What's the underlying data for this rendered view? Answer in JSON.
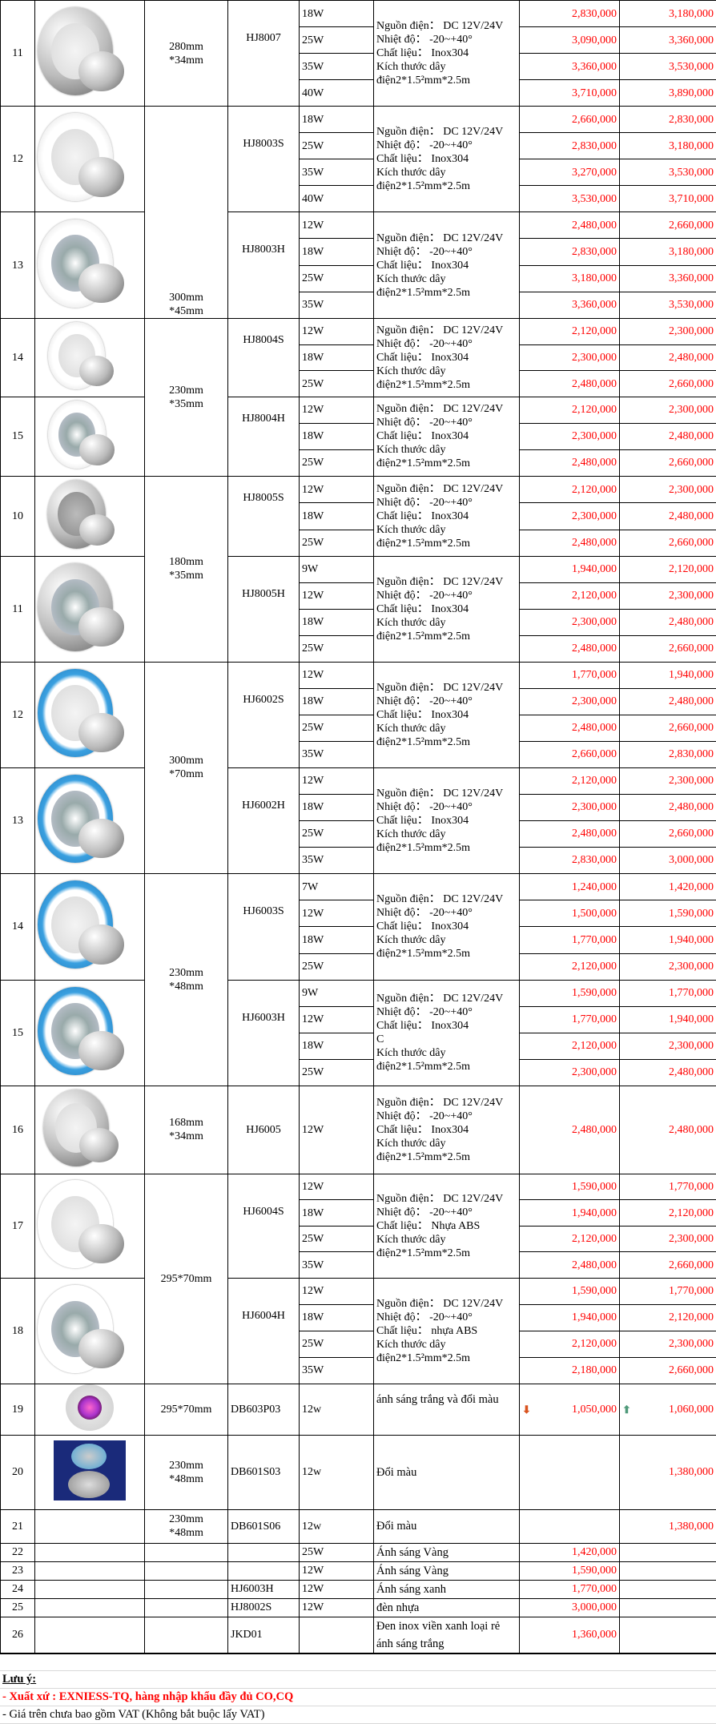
{
  "colors": {
    "price": "#ff0000",
    "text": "#000000",
    "arrow_down": "#d9531e",
    "arrow_up": "#4f9a7a"
  },
  "products": [
    {
      "no": "11",
      "image": "stainless",
      "size": "280mm\n*34mm",
      "model": "HJ8007",
      "spec": [
        "Nguồn điện： DC 12V/24V",
        "Nhiệt độ： -20~+40°",
        "Chất liệu： Inox304",
        "Kích thước dây",
        "điện2*1.5²mm*2.5m"
      ],
      "variants": [
        {
          "power": "18W",
          "price1": "2,830,000",
          "price2": "3,180,000"
        },
        {
          "power": "25W",
          "price1": "3,090,000",
          "price2": "3,360,000"
        },
        {
          "power": "35W",
          "price1": "3,360,000",
          "price2": "3,530,000"
        },
        {
          "power": "40W",
          "price1": "3,710,000",
          "price2": "3,890,000"
        }
      ]
    },
    {
      "no": "12",
      "image": "white-steel",
      "size": "300mm\n*45mm",
      "model": "HJ8003S",
      "spec": [
        "Nguồn điện： DC 12V/24V",
        "Nhiệt độ： -20~+40°",
        "Chất liệu： Inox304",
        "Kích thước dây",
        "điện2*1.5²mm*2.5m"
      ],
      "variants": [
        {
          "power": "18W",
          "price1": "2,660,000",
          "price2": "2,830,000"
        },
        {
          "power": "25W",
          "price1": "2,830,000",
          "price2": "3,180,000"
        },
        {
          "power": "35W",
          "price1": "3,270,000",
          "price2": "3,530,000"
        },
        {
          "power": "40W",
          "price1": "3,530,000",
          "price2": "3,710,000"
        }
      ]
    },
    {
      "no": "13",
      "image": "white-led",
      "size": null,
      "model": "HJ8003H",
      "spec": [
        "Nguồn điện： DC 12V/24V",
        "Nhiệt độ： -20~+40°",
        "Chất liệu： Inox304",
        "Kích thước dây",
        "điện2*1.5²mm*2.5m"
      ],
      "variants": [
        {
          "power": "12W",
          "price1": "2,480,000",
          "price2": "2,660,000"
        },
        {
          "power": "18W",
          "price1": "2,830,000",
          "price2": "3,180,000"
        },
        {
          "power": "25W",
          "price1": "3,180,000",
          "price2": "3,360,000"
        },
        {
          "power": "35W",
          "price1": "3,360,000",
          "price2": "3,530,000"
        }
      ]
    },
    {
      "no": "14",
      "image": "white-steel",
      "size": "230mm\n*35mm",
      "model": "HJ8004S",
      "spec": [
        "Nguồn điện： DC 12V/24V",
        "Nhiệt độ： -20~+40°",
        "Chất liệu： Inox304",
        "Kích thước dây",
        "điện2*1.5²mm*2.5m"
      ],
      "variants": [
        {
          "power": "12W",
          "price1": "2,120,000",
          "price2": "2,300,000"
        },
        {
          "power": "18W",
          "price1": "2,300,000",
          "price2": "2,480,000"
        },
        {
          "power": "25W",
          "price1": "2,480,000",
          "price2": "2,660,000"
        }
      ]
    },
    {
      "no": "15",
      "image": "white-led",
      "size": null,
      "model": "HJ8004H",
      "spec": [
        "Nguồn điện： DC 12V/24V",
        "Nhiệt độ： -20~+40°",
        "Chất liệu： Inox304",
        "Kích thước dây",
        "điện2*1.5²mm*2.5m"
      ],
      "variants": [
        {
          "power": "12W",
          "price1": "2,120,000",
          "price2": "2,300,000"
        },
        {
          "power": "18W",
          "price1": "2,300,000",
          "price2": "2,480,000"
        },
        {
          "power": "25W",
          "price1": "2,480,000",
          "price2": "2,660,000"
        }
      ]
    },
    {
      "no": "10",
      "image": "grey-steel",
      "size": "180mm\n*35mm",
      "model": "HJ8005S",
      "spec": [
        "Nguồn điện： DC 12V/24V",
        "Nhiệt độ： -20~+40°",
        "Chất liệu： Inox304",
        "Kích thước dây",
        "điện2*1.5²mm*2.5m"
      ],
      "variants": [
        {
          "power": "12W",
          "price1": "2,120,000",
          "price2": "2,300,000"
        },
        {
          "power": "18W",
          "price1": "2,300,000",
          "price2": "2,480,000"
        },
        {
          "power": "25W",
          "price1": "2,480,000",
          "price2": "2,660,000"
        }
      ]
    },
    {
      "no": "11",
      "image": "grey-led",
      "size": null,
      "model": "HJ8005H",
      "spec": [
        "Nguồn điện： DC 12V/24V",
        "Nhiệt độ： -20~+40°",
        "Chất liệu： Inox304",
        "Kích thước dây",
        "điện2*1.5²mm*2.5m"
      ],
      "variants": [
        {
          "power": "9W",
          "price1": "1,940,000",
          "price2": "2,120,000"
        },
        {
          "power": "12W",
          "price1": "2,120,000",
          "price2": "2,300,000"
        },
        {
          "power": "18W",
          "price1": "2,300,000",
          "price2": "2,480,000"
        },
        {
          "power": "25W",
          "price1": "2,480,000",
          "price2": "2,660,000"
        }
      ]
    },
    {
      "no": "12",
      "image": "blue-ring",
      "size": "300mm\n*70mm",
      "model": "HJ6002S",
      "spec": [
        "Nguồn điện： DC 12V/24V",
        "Nhiệt độ： -20~+40°",
        "Chất liệu： Inox304",
        "Kích thước dây",
        "điện2*1.5²mm*2.5m"
      ],
      "variants": [
        {
          "power": "12W",
          "price1": "1,770,000",
          "price2": "1,940,000"
        },
        {
          "power": "18W",
          "price1": "2,300,000",
          "price2": "2,480,000"
        },
        {
          "power": "25W",
          "price1": "2,480,000",
          "price2": "2,660,000"
        },
        {
          "power": "35W",
          "price1": "2,660,000",
          "price2": "2,830,000"
        }
      ]
    },
    {
      "no": "13",
      "image": "blue-led",
      "size": null,
      "model": "HJ6002H",
      "spec": [
        "Nguồn điện： DC 12V/24V",
        "Nhiệt độ： -20~+40°",
        "Chất liệu： Inox304",
        "Kích thước dây",
        "điện2*1.5²mm*2.5m"
      ],
      "variants": [
        {
          "power": "12W",
          "price1": "2,120,000",
          "price2": "2,300,000"
        },
        {
          "power": "18W",
          "price1": "2,300,000",
          "price2": "2,480,000"
        },
        {
          "power": "25W",
          "price1": "2,480,000",
          "price2": "2,660,000"
        },
        {
          "power": "35W",
          "price1": "2,830,000",
          "price2": "3,000,000"
        }
      ]
    },
    {
      "no": "14",
      "image": "blue-ring",
      "size": "230mm\n*48mm",
      "model": "HJ6003S",
      "spec": [
        "Nguồn điện： DC 12V/24V",
        "Nhiệt độ： -20~+40°",
        "Chất liệu： Inox304",
        "Kích thước dây",
        "điện2*1.5²mm*2.5m"
      ],
      "variants": [
        {
          "power": "7W",
          "price1": "1,240,000",
          "price2": "1,420,000"
        },
        {
          "power": "12W",
          "price1": "1,500,000",
          "price2": "1,590,000"
        },
        {
          "power": "18W",
          "price1": "1,770,000",
          "price2": "1,940,000"
        },
        {
          "power": "25W",
          "price1": "2,120,000",
          "price2": "2,300,000"
        }
      ]
    },
    {
      "no": "15",
      "image": "blue-led",
      "size": null,
      "model": "HJ6003H",
      "spec": [
        "Nguồn điện： DC 12V/24V",
        "Nhiệt độ： -20~+40°",
        "Chất liệu： Inox304",
        "C",
        "Kích thước dây",
        "điện2*1.5²mm*2.5m"
      ],
      "variants": [
        {
          "power": "9W",
          "price1": "1,590,000",
          "price2": "1,770,000"
        },
        {
          "power": "12W",
          "price1": "1,770,000",
          "price2": "1,940,000"
        },
        {
          "power": "18W",
          "price1": "2,120,000",
          "price2": "2,300,000"
        },
        {
          "power": "25W",
          "price1": "2,300,000",
          "price2": "2,480,000"
        }
      ]
    },
    {
      "no": "16",
      "image": "stainless",
      "size": "168mm\n*34mm",
      "model": "HJ6005",
      "spec": [
        "Nguồn điện： DC 12V/24V",
        "Nhiệt độ： -20~+40°",
        "Chất liệu： Inox304",
        "Kích thước dây",
        "điện2*1.5²mm*2.5m"
      ],
      "variants": [
        {
          "power": "12W",
          "price1": "2,480,000",
          "price2": "2,480,000"
        }
      ]
    },
    {
      "no": "17",
      "image": "abs",
      "size": "295*70mm",
      "model": "HJ6004S",
      "spec": [
        "Nguồn điện： DC 12V/24V",
        "Nhiệt độ： -20~+40°",
        "Chất liệu： Nhựa ABS",
        "Kích thước dây",
        "điện2*1.5²mm*2.5m"
      ],
      "variants": [
        {
          "power": "12W",
          "price1": "1,590,000",
          "price2": "1,770,000"
        },
        {
          "power": "18W",
          "price1": "1,940,000",
          "price2": "2,120,000"
        },
        {
          "power": "25W",
          "price1": "2,120,000",
          "price2": "2,300,000"
        },
        {
          "power": "35W",
          "price1": "2,480,000",
          "price2": "2,660,000"
        }
      ]
    },
    {
      "no": "18",
      "image": "abs-led",
      "size": null,
      "model": "HJ6004H",
      "spec": [
        "Nguồn điện： DC 12V/24V",
        "Nhiệt độ： -20~+40°",
        "Chất liệu： nhựa ABS",
        "Kích thước dây",
        "điện2*1.5²mm*2.5m"
      ],
      "variants": [
        {
          "power": "12W",
          "price1": "1,590,000",
          "price2": "1,770,000"
        },
        {
          "power": "18W",
          "price1": "1,940,000",
          "price2": "2,120,000"
        },
        {
          "power": "25W",
          "price1": "2,120,000",
          "price2": "2,300,000"
        },
        {
          "power": "35W",
          "price1": "2,180,000",
          "price2": "2,660,000"
        }
      ]
    },
    {
      "no": "19",
      "image": "rgb",
      "size": "295*70mm",
      "model": "DB603P03",
      "spec": [
        "ánh sáng trắng và đổi màu"
      ],
      "variants": [
        {
          "power": "12w",
          "price1": "1,050,000",
          "price2": "1,060,000",
          "price1_icon": "arrow-down-icon",
          "price2_icon": "arrow-up-icon"
        }
      ]
    },
    {
      "no": "20",
      "image": "photo",
      "size": "230mm\n*48mm",
      "model": "DB601S03",
      "spec": [
        "Đổi màu"
      ],
      "variants": [
        {
          "power": "12w",
          "price1": "",
          "price2": "1,380,000"
        }
      ]
    },
    {
      "no": "21",
      "image": "",
      "size": "230mm\n*48mm",
      "model": "DB601S06",
      "spec": [
        "Đổi màu"
      ],
      "variants": [
        {
          "power": "12w",
          "price1": "",
          "price2": "1,380,000"
        }
      ]
    },
    {
      "no": "22",
      "image": "",
      "size": "",
      "model": "",
      "spec": [
        "Ánh sáng Vàng"
      ],
      "variants": [
        {
          "power": "25W",
          "price1": "1,420,000",
          "price2": ""
        }
      ]
    },
    {
      "no": "23",
      "image": "",
      "size": "",
      "model": "",
      "spec": [
        "Ánh sáng Vàng"
      ],
      "variants": [
        {
          "power": "12W",
          "price1": "1,590,000",
          "price2": ""
        }
      ]
    },
    {
      "no": "24",
      "image": "",
      "size": "",
      "model": "HJ6003H",
      "spec": [
        "Ánh sáng xanh"
      ],
      "variants": [
        {
          "power": "12W",
          "price1": "1,770,000",
          "price2": ""
        }
      ]
    },
    {
      "no": "25",
      "image": "",
      "size": "",
      "model": "HJ8002S",
      "spec": [
        "đèn nhựa"
      ],
      "variants": [
        {
          "power": "12W",
          "price1": "3,000,000",
          "price2": ""
        }
      ]
    },
    {
      "no": "26",
      "image": "",
      "size": "",
      "model": "JKD01",
      "spec": [
        "Đen inox viền xanh loại rẻ",
        "ánh sáng trắng"
      ],
      "variants": [
        {
          "power": "",
          "price1": "1,360,000",
          "price2": ""
        }
      ]
    }
  ],
  "notes": {
    "title": "Lưu ý:",
    "origin": "- Xuất xứ : EXNIESS-TQ, hàng nhập khẩu đầy đủ CO,CQ",
    "vat": "- Giá trên chưa bao gồm VAT  (Không bắt buộc lấy VAT)"
  }
}
